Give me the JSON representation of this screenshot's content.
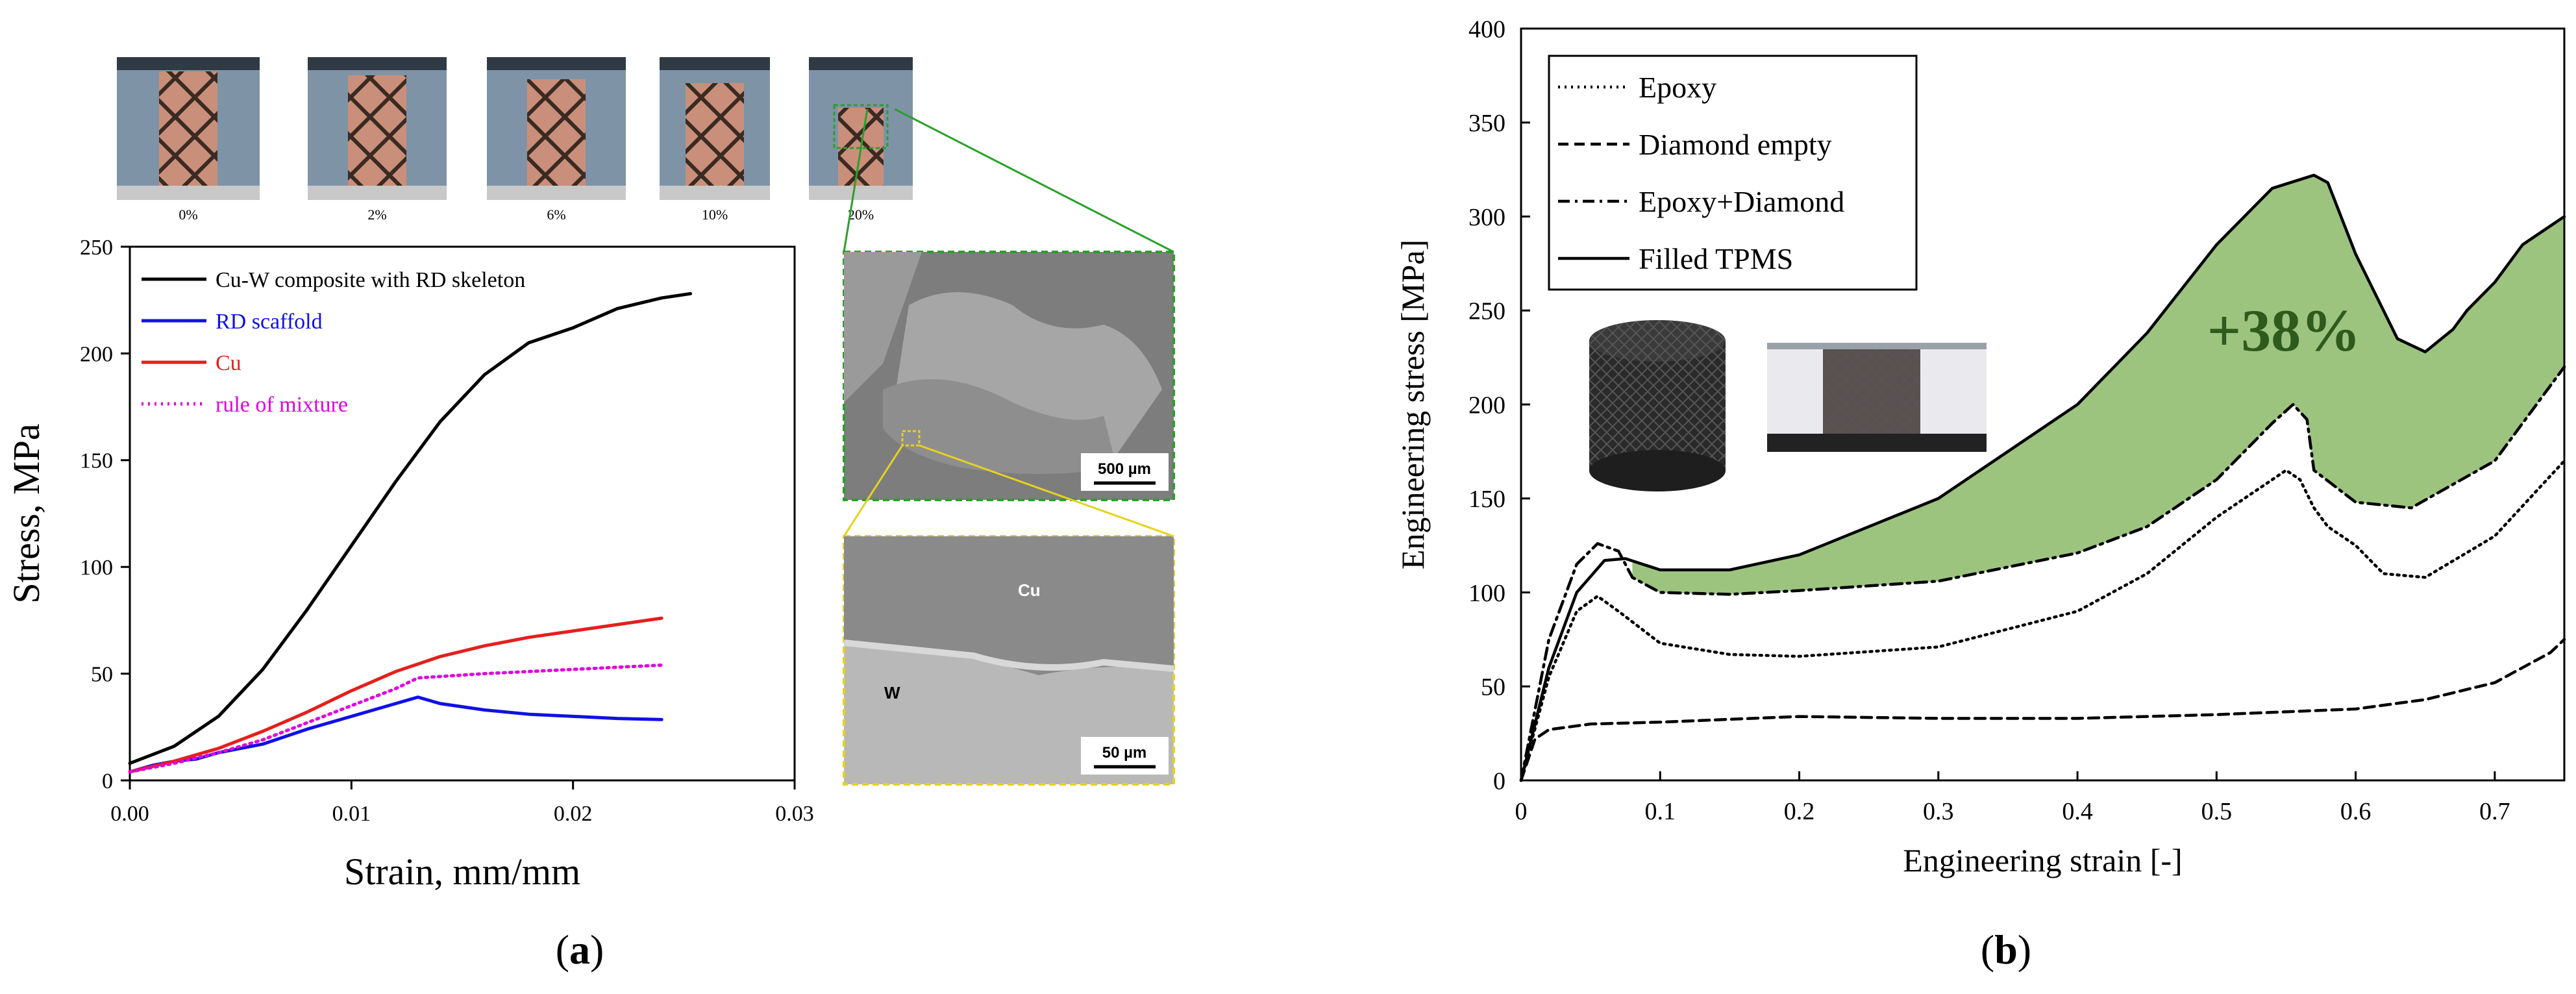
{
  "panel_labels": {
    "a": "(a)",
    "b": "(b)",
    "a_letter": "a",
    "b_letter": "b"
  },
  "inset_photos_a": {
    "frames": [
      {
        "label": "0%"
      },
      {
        "label": "2%"
      },
      {
        "label": "6%"
      },
      {
        "label": "10%"
      },
      {
        "label": "20%"
      }
    ],
    "micrograph_top": {
      "scale_bar": "500 µm"
    },
    "micrograph_bottom": {
      "scale_bar": "50 µm",
      "phase_upper": "Cu",
      "phase_lower": "W"
    }
  },
  "annotation_b": "+38%",
  "colors": {
    "black": "#000000",
    "blue": "#1010e6",
    "red": "#e61e1e",
    "magenta": "#e000e0",
    "fill_green": "#9dc47f",
    "frame_green": "#2aa02a",
    "frame_yellow": "#e6d21e"
  },
  "chart_data": [
    {
      "type": "line",
      "title": "",
      "xlabel": "Strain, mm/mm",
      "ylabel": "Stress, MPa",
      "xlim": [
        0,
        0.03
      ],
      "ylim": [
        0,
        250
      ],
      "x_ticks": [
        "0.00",
        "0.01",
        "0.02",
        "0.03"
      ],
      "y_ticks": [
        "0",
        "50",
        "100",
        "150",
        "200",
        "250"
      ],
      "legend_position": "top-left",
      "series": [
        {
          "name": "Cu-W composite with RD skeleton",
          "color": "#000000",
          "dash": "solid",
          "x": [
            0,
            0.002,
            0.004,
            0.006,
            0.008,
            0.01,
            0.012,
            0.014,
            0.016,
            0.018,
            0.02,
            0.022,
            0.024,
            0.0253
          ],
          "y": [
            8,
            16,
            30,
            52,
            80,
            110,
            140,
            168,
            190,
            205,
            212,
            221,
            226,
            228
          ]
        },
        {
          "name": "RD scaffold",
          "color": "#1010e6",
          "dash": "solid",
          "x": [
            0,
            0.001,
            0.002,
            0.003,
            0.004,
            0.006,
            0.008,
            0.01,
            0.012,
            0.013,
            0.014,
            0.016,
            0.018,
            0.02,
            0.022,
            0.024
          ],
          "y": [
            4,
            7,
            9,
            10,
            13,
            17,
            24,
            30,
            36,
            39,
            36,
            33,
            31,
            30,
            29,
            28.5
          ]
        },
        {
          "name": "Cu",
          "color": "#e61e1e",
          "dash": "solid",
          "x": [
            0,
            0.002,
            0.004,
            0.006,
            0.008,
            0.01,
            0.012,
            0.014,
            0.016,
            0.018,
            0.02,
            0.022,
            0.024
          ],
          "y": [
            4,
            9,
            15,
            23,
            32,
            42,
            51,
            58,
            63,
            67,
            70,
            73,
            76
          ]
        },
        {
          "name": "rule of mixture",
          "color": "#e000e0",
          "dash": "dotted",
          "x": [
            0,
            0.002,
            0.004,
            0.006,
            0.008,
            0.01,
            0.012,
            0.013,
            0.016,
            0.02,
            0.024
          ],
          "y": [
            4,
            8,
            13,
            19,
            27,
            35,
            43,
            48,
            50,
            52,
            54
          ]
        }
      ]
    },
    {
      "type": "line",
      "title": "",
      "xlabel": "Engineering strain [-]",
      "ylabel": "Engineering stress [MPa]",
      "xlim": [
        0,
        0.75
      ],
      "ylim": [
        0,
        400
      ],
      "x_ticks": [
        "0",
        "0.1",
        "0.2",
        "0.3",
        "0.4",
        "0.5",
        "0.6",
        "0.7"
      ],
      "y_ticks": [
        "0",
        "50",
        "100",
        "150",
        "200",
        "250",
        "300",
        "350",
        "400"
      ],
      "legend_position": "top-left",
      "filled_region": "between Filled TPMS and Epoxy+Diamond",
      "series": [
        {
          "name": "Epoxy",
          "color": "#000000",
          "dash": "dotted",
          "x": [
            0,
            0.02,
            0.04,
            0.055,
            0.07,
            0.1,
            0.15,
            0.2,
            0.3,
            0.4,
            0.45,
            0.5,
            0.53,
            0.55,
            0.56,
            0.57,
            0.58,
            0.6,
            0.62,
            0.65,
            0.7,
            0.75
          ],
          "y": [
            0,
            55,
            90,
            98,
            90,
            73,
            67,
            66,
            71,
            90,
            110,
            140,
            155,
            165,
            160,
            145,
            135,
            125,
            110,
            108,
            130,
            170
          ]
        },
        {
          "name": "Diamond empty",
          "color": "#000000",
          "dash": "dashed",
          "x": [
            0,
            0.01,
            0.02,
            0.05,
            0.1,
            0.2,
            0.3,
            0.4,
            0.5,
            0.6,
            0.65,
            0.7,
            0.74,
            0.75
          ],
          "y": [
            0,
            22,
            27,
            30,
            31,
            34,
            33,
            33,
            35,
            38,
            43,
            52,
            68,
            75
          ]
        },
        {
          "name": "Epoxy+Diamond",
          "color": "#000000",
          "dash": "dashdot",
          "x": [
            0,
            0.02,
            0.04,
            0.055,
            0.07,
            0.08,
            0.1,
            0.15,
            0.2,
            0.3,
            0.4,
            0.45,
            0.5,
            0.54,
            0.555,
            0.565,
            0.57,
            0.6,
            0.64,
            0.7,
            0.75
          ],
          "y": [
            0,
            75,
            115,
            126,
            122,
            108,
            100,
            99,
            101,
            106,
            121,
            135,
            160,
            190,
            200,
            192,
            165,
            148,
            145,
            170,
            220
          ]
        },
        {
          "name": "Filled TPMS",
          "color": "#000000",
          "dash": "solid",
          "x": [
            0,
            0.02,
            0.04,
            0.06,
            0.075,
            0.1,
            0.15,
            0.2,
            0.3,
            0.4,
            0.45,
            0.5,
            0.54,
            0.57,
            0.58,
            0.6,
            0.63,
            0.65,
            0.67,
            0.68,
            0.7,
            0.72,
            0.75
          ],
          "y": [
            0,
            60,
            100,
            117,
            118,
            112,
            112,
            120,
            150,
            200,
            238,
            285,
            315,
            322,
            318,
            280,
            235,
            228,
            240,
            250,
            265,
            285,
            300
          ]
        }
      ]
    }
  ]
}
